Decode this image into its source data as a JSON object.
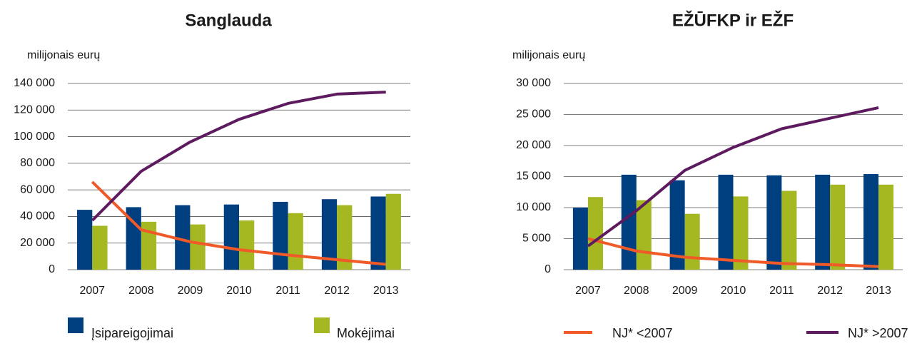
{
  "chart_data": [
    {
      "type": "bar_line",
      "title": "Sanglauda",
      "y_label": "milijonais eurų",
      "categories": [
        "2007",
        "2008",
        "2009",
        "2010",
        "2011",
        "2012",
        "2013"
      ],
      "ylim": [
        0,
        140000
      ],
      "yticks": [
        0,
        {
          "value": 20000,
          "label": "20 000"
        },
        {
          "value": 40000,
          "label": "40 000"
        },
        {
          "value": 60000,
          "label": "60 000"
        },
        {
          "value": 80000,
          "label": "80 000"
        },
        {
          "value": 100000,
          "label": "100 000"
        },
        {
          "value": 120000,
          "label": "120 000"
        },
        {
          "value": 140000,
          "label": "140 000"
        }
      ],
      "grid": true,
      "series": [
        {
          "name": "Įsipareigojimai",
          "kind": "bar",
          "color": "#003f7f",
          "values": [
            45000,
            47000,
            48500,
            49000,
            51000,
            53000,
            55000
          ]
        },
        {
          "name": "Mokėjimai",
          "kind": "bar",
          "color": "#a5b822",
          "values": [
            33000,
            36000,
            34000,
            37000,
            42500,
            48500,
            57000
          ]
        },
        {
          "name": "NJ* <2007",
          "kind": "line",
          "color": "#f05a28",
          "values": [
            66000,
            30000,
            21000,
            15000,
            11000,
            7500,
            4000
          ]
        },
        {
          "name": "NJ* >2007",
          "kind": "line",
          "color": "#5e1a5e",
          "values": [
            37000,
            74000,
            96000,
            113000,
            125000,
            132000,
            133500
          ]
        }
      ]
    },
    {
      "type": "bar_line",
      "title": "EŽŪFKP ir EŽF",
      "y_label": "milijonais eurų",
      "categories": [
        "2007",
        "2008",
        "2009",
        "2010",
        "2011",
        "2012",
        "2013"
      ],
      "ylim": [
        0,
        30000
      ],
      "yticks": [
        0,
        {
          "value": 5000,
          "label": "5 000"
        },
        {
          "value": 10000,
          "label": "10 000"
        },
        {
          "value": 15000,
          "label": "15 000"
        },
        {
          "value": 20000,
          "label": "20 000"
        },
        {
          "value": 25000,
          "label": "25 000"
        },
        {
          "value": 30000,
          "label": "30 000"
        }
      ],
      "grid": true,
      "series": [
        {
          "name": "Įsipareigojimai",
          "kind": "bar",
          "color": "#003f7f",
          "values": [
            10000,
            15300,
            14400,
            15300,
            15200,
            15300,
            15400
          ]
        },
        {
          "name": "Mokėjimai",
          "kind": "bar",
          "color": "#a5b822",
          "values": [
            11700,
            11200,
            9000,
            11800,
            12700,
            13700,
            13700
          ]
        },
        {
          "name": "NJ* <2007",
          "kind": "line",
          "color": "#f05a28",
          "values": [
            5000,
            3000,
            2000,
            1500,
            1000,
            800,
            500
          ]
        },
        {
          "name": "NJ* >2007",
          "kind": "line",
          "color": "#5e1a5e",
          "values": [
            3800,
            9500,
            16000,
            19700,
            22700,
            24400,
            26100
          ]
        }
      ]
    }
  ]
}
